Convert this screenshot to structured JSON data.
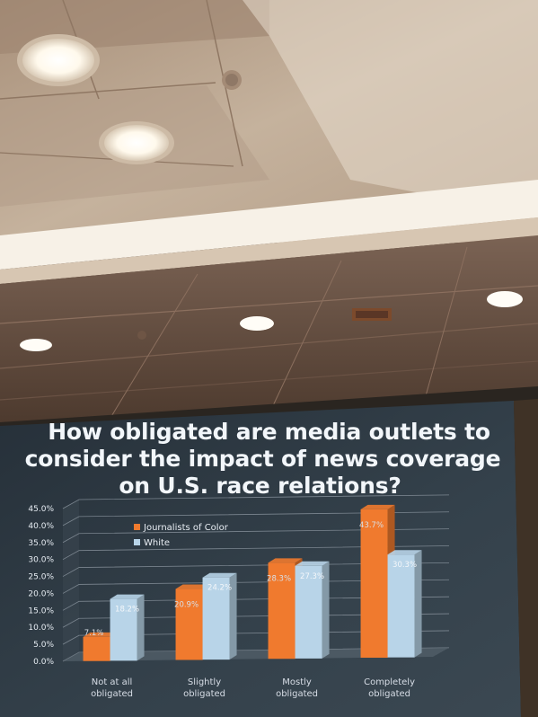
{
  "slide": {
    "title_lines": [
      "How obligated are media outlets to",
      "consider the impact of news coverage",
      "on U.S. race relations?"
    ]
  },
  "colors": {
    "ceiling": "#c9b9a6",
    "screen": "#2f3b44",
    "series_color": "#f07a2e",
    "series_white": "#b8d4e8"
  },
  "chart_data": {
    "type": "bar",
    "categories": [
      [
        "Not at all",
        "obligated"
      ],
      [
        "Slightly",
        "obligated"
      ],
      [
        "Mostly",
        "obligated"
      ],
      [
        "Completely",
        "obligated"
      ]
    ],
    "series": [
      {
        "name": "Journalists of Color",
        "values": [
          7.1,
          20.9,
          28.3,
          43.7
        ],
        "labels": [
          "7.1%",
          "20.9%",
          "28.3%",
          "43.7%"
        ],
        "color": "#f07a2e"
      },
      {
        "name": "White",
        "values": [
          18.2,
          24.2,
          27.3,
          30.3
        ],
        "labels": [
          "18.2%",
          "24.2%",
          "27.3%",
          "30.3%"
        ],
        "color": "#b8d4e8"
      }
    ],
    "yticks": [
      "0.0%",
      "5.0%",
      "10.0%",
      "15.0%",
      "20.0%",
      "25.0%",
      "30.0%",
      "35.0%",
      "40.0%",
      "45.0%"
    ],
    "ylim": [
      0,
      45
    ],
    "grid": true,
    "legend": "top-left",
    "style": "3d-clustered-column"
  }
}
